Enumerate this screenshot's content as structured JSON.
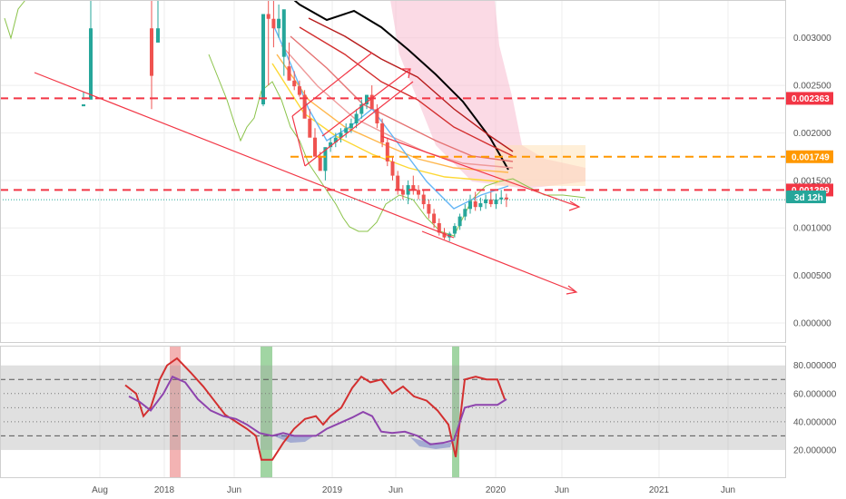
{
  "chart_data": [
    {
      "type": "candlestick",
      "x_ticks": [
        "Aug",
        "2018",
        "Jun",
        "2019",
        "Jun",
        "2020",
        "Jun",
        "2021",
        "Jun"
      ],
      "y_ticks": [
        "0.003000",
        "0.002500",
        "0.002000",
        "0.001500",
        "0.001000",
        "0.000500",
        "0.000000"
      ],
      "ylim": [
        -0.00021,
        0.003398
      ],
      "grid": true,
      "colors": {
        "up": "#26a69a",
        "down": "#ef5350",
        "trendline": "#f23645",
        "level_red": "#f23645",
        "level_orange": "#ff9800"
      },
      "levels": [
        {
          "value": "0.002363",
          "y": 0.002363,
          "color": "#f23645"
        },
        {
          "value": "0.001749",
          "y": 0.001749,
          "color": "#ff9800"
        },
        {
          "value": "0.001399",
          "y": 0.001399,
          "color": "#f23645"
        }
      ],
      "current_price": 0.001297,
      "countdown": "3d 12h",
      "candles": [
        [
          2.28,
          2.35,
          2.43,
          2.3
        ],
        [
          2.35,
          3.5,
          2.9,
          3.1
        ],
        [
          3.1,
          2.25,
          3.4,
          2.6
        ],
        [
          2.95,
          3.45,
          3.0,
          3.1
        ],
        [
          2.3,
          2.28,
          2.45,
          3.25
        ],
        [
          3.25,
          2.5,
          3.45,
          3.2
        ],
        [
          3.2,
          2.9,
          3.4,
          3.1
        ],
        [
          3.1,
          3.0,
          3.35,
          3.2
        ],
        [
          2.8,
          2.6,
          3.05,
          3.3
        ],
        [
          2.7,
          2.58,
          2.95,
          2.55
        ],
        [
          2.55,
          2.45,
          2.65,
          2.49
        ],
        [
          2.49,
          2.38,
          2.55,
          2.4
        ],
        [
          2.4,
          2.3,
          2.45,
          2.15
        ],
        [
          2.15,
          2.0,
          2.25,
          1.95
        ],
        [
          1.95,
          1.84,
          2.05,
          1.75
        ],
        [
          1.75,
          1.7,
          1.8,
          1.6
        ],
        [
          1.6,
          1.5,
          1.7,
          1.85
        ],
        [
          1.85,
          1.8,
          1.95,
          1.9
        ],
        [
          1.9,
          1.85,
          2.0,
          1.95
        ],
        [
          1.95,
          1.9,
          2.05,
          2.0
        ],
        [
          2.0,
          1.95,
          2.1,
          2.05
        ],
        [
          2.05,
          2.0,
          2.15,
          2.1
        ],
        [
          2.1,
          2.05,
          2.25,
          2.2
        ],
        [
          2.2,
          2.15,
          2.35,
          2.3
        ],
        [
          2.3,
          2.25,
          2.4,
          2.4
        ],
        [
          2.4,
          2.25,
          2.5,
          2.25
        ],
        [
          2.25,
          2.05,
          2.3,
          2.1
        ],
        [
          2.1,
          1.85,
          2.15,
          1.9
        ],
        [
          1.9,
          1.65,
          1.95,
          1.7
        ],
        [
          1.7,
          1.5,
          1.75,
          1.55
        ],
        [
          1.55,
          1.35,
          1.6,
          1.4
        ],
        [
          1.4,
          1.3,
          1.45,
          1.35
        ],
        [
          1.35,
          1.25,
          1.5,
          1.45
        ],
        [
          1.45,
          1.35,
          1.55,
          1.4
        ],
        [
          1.4,
          1.3,
          1.45,
          1.35
        ],
        [
          1.35,
          1.2,
          1.4,
          1.25
        ],
        [
          1.25,
          1.1,
          1.3,
          1.15
        ],
        [
          1.15,
          1.0,
          1.2,
          1.05
        ],
        [
          1.05,
          0.92,
          1.1,
          0.95
        ],
        [
          0.95,
          0.88,
          1.0,
          0.9
        ],
        [
          0.9,
          0.86,
          0.96,
          0.94
        ],
        [
          0.94,
          0.9,
          1.05,
          1.02
        ],
        [
          1.02,
          0.98,
          1.15,
          1.12
        ],
        [
          1.12,
          1.08,
          1.25,
          1.2
        ],
        [
          1.2,
          1.15,
          1.35,
          1.28
        ],
        [
          1.28,
          1.18,
          1.38,
          1.22
        ],
        [
          1.22,
          1.18,
          1.32,
          1.26
        ],
        [
          1.26,
          1.2,
          1.35,
          1.3
        ],
        [
          1.3,
          1.22,
          1.38,
          1.25
        ],
        [
          1.25,
          1.2,
          1.36,
          1.3
        ],
        [
          1.3,
          1.25,
          1.4,
          1.32
        ],
        [
          1.32,
          1.22,
          1.36,
          1.3
        ]
      ],
      "moving_averages": [
        {
          "name": "",
          "color": "#000000",
          "points": [
            [
              300,
              -20
            ],
            [
              330,
              5
            ],
            [
              360,
              22
            ],
            [
              390,
              12
            ],
            [
              420,
              30
            ],
            [
              450,
              55
            ],
            [
              480,
              82
            ],
            [
              510,
              112
            ],
            [
              540,
              152
            ],
            [
              560,
              187
            ]
          ]
        },
        {
          "name": "",
          "color": "#b71c1c",
          "points": [
            [
              340,
              20
            ],
            [
              380,
              40
            ],
            [
              420,
              65
            ],
            [
              460,
              85
            ],
            [
              500,
              120
            ],
            [
              540,
              150
            ],
            [
              565,
              167
            ]
          ]
        },
        {
          "name": "",
          "color": "#d32f2f",
          "points": [
            [
              330,
              30
            ],
            [
              380,
              60
            ],
            [
              420,
              90
            ],
            [
              460,
              110
            ],
            [
              500,
              140
            ],
            [
              540,
              160
            ],
            [
              565,
              172
            ]
          ]
        },
        {
          "name": "",
          "color": "#e57373",
          "points": [
            [
              320,
              40
            ],
            [
              360,
              75
            ],
            [
              400,
              115
            ],
            [
              440,
              135
            ],
            [
              480,
              155
            ],
            [
              520,
              172
            ],
            [
              565,
              178
            ]
          ]
        },
        {
          "name": "",
          "color": "#ef9a9a",
          "points": [
            [
              310,
              50
            ],
            [
              350,
              95
            ],
            [
              390,
              130
            ],
            [
              430,
              150
            ],
            [
              470,
              168
            ],
            [
              510,
              180
            ],
            [
              565,
              185
            ]
          ]
        },
        {
          "name": "",
          "color": "#ffb74d",
          "points": [
            [
              305,
              60
            ],
            [
              340,
              110
            ],
            [
              380,
              140
            ],
            [
              420,
              158
            ],
            [
              460,
              175
            ],
            [
              500,
              185
            ],
            [
              560,
              190
            ]
          ]
        },
        {
          "name": "",
          "color": "#fdd835",
          "points": [
            [
              300,
              70
            ],
            [
              335,
              125
            ],
            [
              370,
              150
            ],
            [
              410,
              170
            ],
            [
              450,
              185
            ],
            [
              490,
              195
            ],
            [
              550,
              200
            ]
          ]
        },
        {
          "name": "",
          "color": "#64b5f6",
          "points": [
            [
              300,
              25
            ],
            [
              320,
              70
            ],
            [
              340,
              120
            ],
            [
              360,
              155
            ],
            [
              385,
              140
            ],
            [
              410,
              120
            ],
            [
              440,
              160
            ],
            [
              470,
              200
            ],
            [
              500,
              230
            ],
            [
              530,
              215
            ],
            [
              560,
              205
            ]
          ]
        }
      ]
    },
    {
      "type": "line",
      "y_ticks": [
        "80.000000",
        "60.000000",
        "40.000000",
        "20.000000"
      ],
      "ylim": [
        0,
        94
      ],
      "bands": [
        20,
        80
      ],
      "dashed_levels": [
        70,
        30
      ],
      "dotted_levels": [
        60,
        50,
        40
      ],
      "highlights": [
        {
          "from": 187,
          "to": 199,
          "color": "#ef9a9a"
        },
        {
          "from": 287,
          "to": 300,
          "color": "#81c784"
        },
        {
          "from": 498,
          "to": 506,
          "color": "#81c784"
        }
      ],
      "series": [
        {
          "name": "",
          "color": "#d32f2f",
          "values": [
            [
              138,
              66
            ],
            [
              150,
              60
            ],
            [
              158,
              44
            ],
            [
              166,
              50
            ],
            [
              176,
              70
            ],
            [
              184,
              80
            ],
            [
              195,
              85
            ],
            [
              210,
              75
            ],
            [
              224,
              65
            ],
            [
              236,
              55
            ],
            [
              248,
              45
            ],
            [
              260,
              40
            ],
            [
              272,
              35
            ],
            [
              282,
              30
            ],
            [
              288,
              13
            ],
            [
              300,
              13
            ],
            [
              312,
              25
            ],
            [
              324,
              35
            ],
            [
              336,
              42
            ],
            [
              348,
              44
            ],
            [
              356,
              38
            ],
            [
              364,
              44
            ],
            [
              376,
              50
            ],
            [
              388,
              64
            ],
            [
              398,
              72
            ],
            [
              408,
              68
            ],
            [
              420,
              70
            ],
            [
              432,
              60
            ],
            [
              444,
              65
            ],
            [
              456,
              58
            ],
            [
              470,
              55
            ],
            [
              482,
              48
            ],
            [
              494,
              38
            ],
            [
              502,
              15
            ],
            [
              512,
              70
            ],
            [
              524,
              72
            ],
            [
              536,
              70
            ],
            [
              548,
              70
            ],
            [
              556,
              56
            ]
          ]
        },
        {
          "name": "",
          "color": "#8e44ad",
          "values": [
            [
              142,
              58
            ],
            [
              154,
              54
            ],
            [
              166,
              48
            ],
            [
              180,
              60
            ],
            [
              190,
              72
            ],
            [
              204,
              68
            ],
            [
              218,
              56
            ],
            [
              232,
              48
            ],
            [
              246,
              44
            ],
            [
              260,
              42
            ],
            [
              272,
              38
            ],
            [
              286,
              32
            ],
            [
              300,
              30
            ],
            [
              312,
              32
            ],
            [
              324,
              30
            ],
            [
              336,
              30
            ],
            [
              348,
              30
            ],
            [
              360,
              35
            ],
            [
              374,
              39
            ],
            [
              388,
              43
            ],
            [
              400,
              47
            ],
            [
              410,
              44
            ],
            [
              420,
              33
            ],
            [
              432,
              32
            ],
            [
              446,
              33
            ],
            [
              460,
              30
            ],
            [
              474,
              24
            ],
            [
              488,
              25
            ],
            [
              500,
              27
            ],
            [
              512,
              50
            ],
            [
              524,
              52
            ],
            [
              536,
              52
            ],
            [
              548,
              52
            ],
            [
              558,
              56
            ]
          ]
        }
      ]
    }
  ]
}
